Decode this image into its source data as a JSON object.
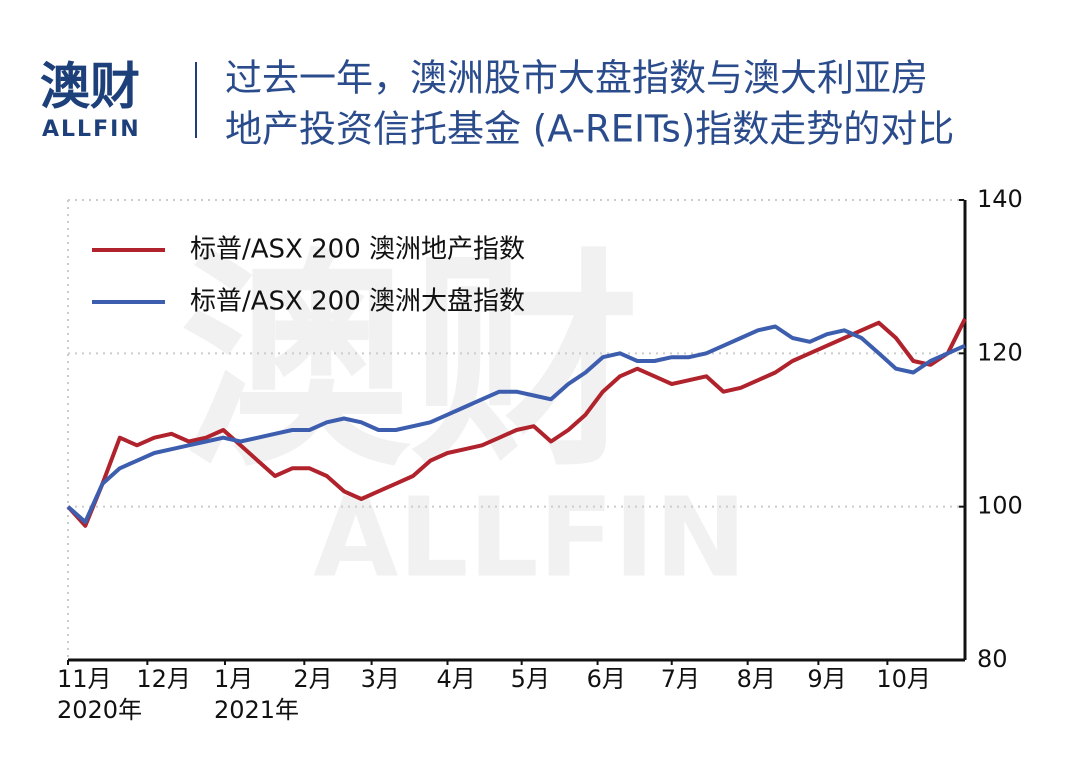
{
  "header": {
    "logo": "澳财",
    "logo_sub": "ALLFIN",
    "title_lines": [
      "过去一年，澳洲股市大盘指数与澳大利亚房",
      "地产投资信托基金 (A-REITs)指数走势的对比"
    ]
  },
  "chart_data": {
    "type": "line",
    "x": [
      0,
      1,
      2,
      3,
      4,
      5,
      6,
      7,
      8,
      9,
      10,
      11,
      12,
      13,
      14,
      15,
      16,
      17,
      18,
      19,
      20,
      21,
      22,
      23,
      24,
      25,
      26,
      27,
      28,
      29,
      30,
      31,
      32,
      33,
      34,
      35,
      36,
      37,
      38,
      39,
      40,
      41,
      42,
      43,
      44,
      45,
      46,
      47,
      48,
      49,
      50,
      51,
      52
    ],
    "xlim": [
      0,
      52
    ],
    "xticks": [
      {
        "value": 0,
        "label": "11月"
      },
      {
        "value": 4.6,
        "label": "12月"
      },
      {
        "value": 9.1,
        "label": "1月"
      },
      {
        "value": 13.7,
        "label": "2月"
      },
      {
        "value": 17.6,
        "label": "3月"
      },
      {
        "value": 22,
        "label": "4月"
      },
      {
        "value": 26.3,
        "label": "5月"
      },
      {
        "value": 30.7,
        "label": "6月"
      },
      {
        "value": 35,
        "label": "7月"
      },
      {
        "value": 39.4,
        "label": "8月"
      },
      {
        "value": 43.5,
        "label": "9月"
      },
      {
        "value": 47.5,
        "label": "10月"
      }
    ],
    "x_year_labels": [
      {
        "value": 0,
        "label": "2020年"
      },
      {
        "value": 9.1,
        "label": "2021年"
      }
    ],
    "ylim": [
      80,
      140
    ],
    "yticks": [
      80,
      100,
      120,
      140
    ],
    "grid": true,
    "legend": "upper left",
    "series": [
      {
        "name": "标普/ASX 200 澳洲地产指数",
        "color": "#b0222c",
        "values": [
          100,
          97.5,
          103,
          109,
          108,
          109,
          109.5,
          108.5,
          109,
          110,
          108,
          106,
          104,
          105,
          105,
          104,
          102,
          101,
          102,
          103,
          104,
          106,
          107,
          107.5,
          108,
          109,
          110,
          110.5,
          108.5,
          110,
          112,
          115,
          117,
          118,
          117,
          116,
          116.5,
          117,
          115,
          115.5,
          116.5,
          117.5,
          119,
          120,
          121,
          122,
          123,
          124,
          122,
          119,
          118.5,
          120,
          124.5
        ]
      },
      {
        "name": "标普/ASX 200 澳洲大盘指数",
        "color": "#3d5eae",
        "values": [
          100,
          98,
          103,
          105,
          106,
          107,
          107.5,
          108,
          108.5,
          109,
          108.5,
          109,
          109.5,
          110,
          110,
          111,
          111.5,
          111,
          110,
          110,
          110.5,
          111,
          112,
          113,
          114,
          115,
          115,
          114.5,
          114,
          116,
          117.5,
          119.5,
          120,
          119,
          119,
          119.5,
          119.5,
          120,
          121,
          122,
          123,
          123.5,
          122,
          121.5,
          122.5,
          123,
          122,
          120,
          118,
          117.5,
          119,
          120,
          121
        ]
      }
    ]
  }
}
